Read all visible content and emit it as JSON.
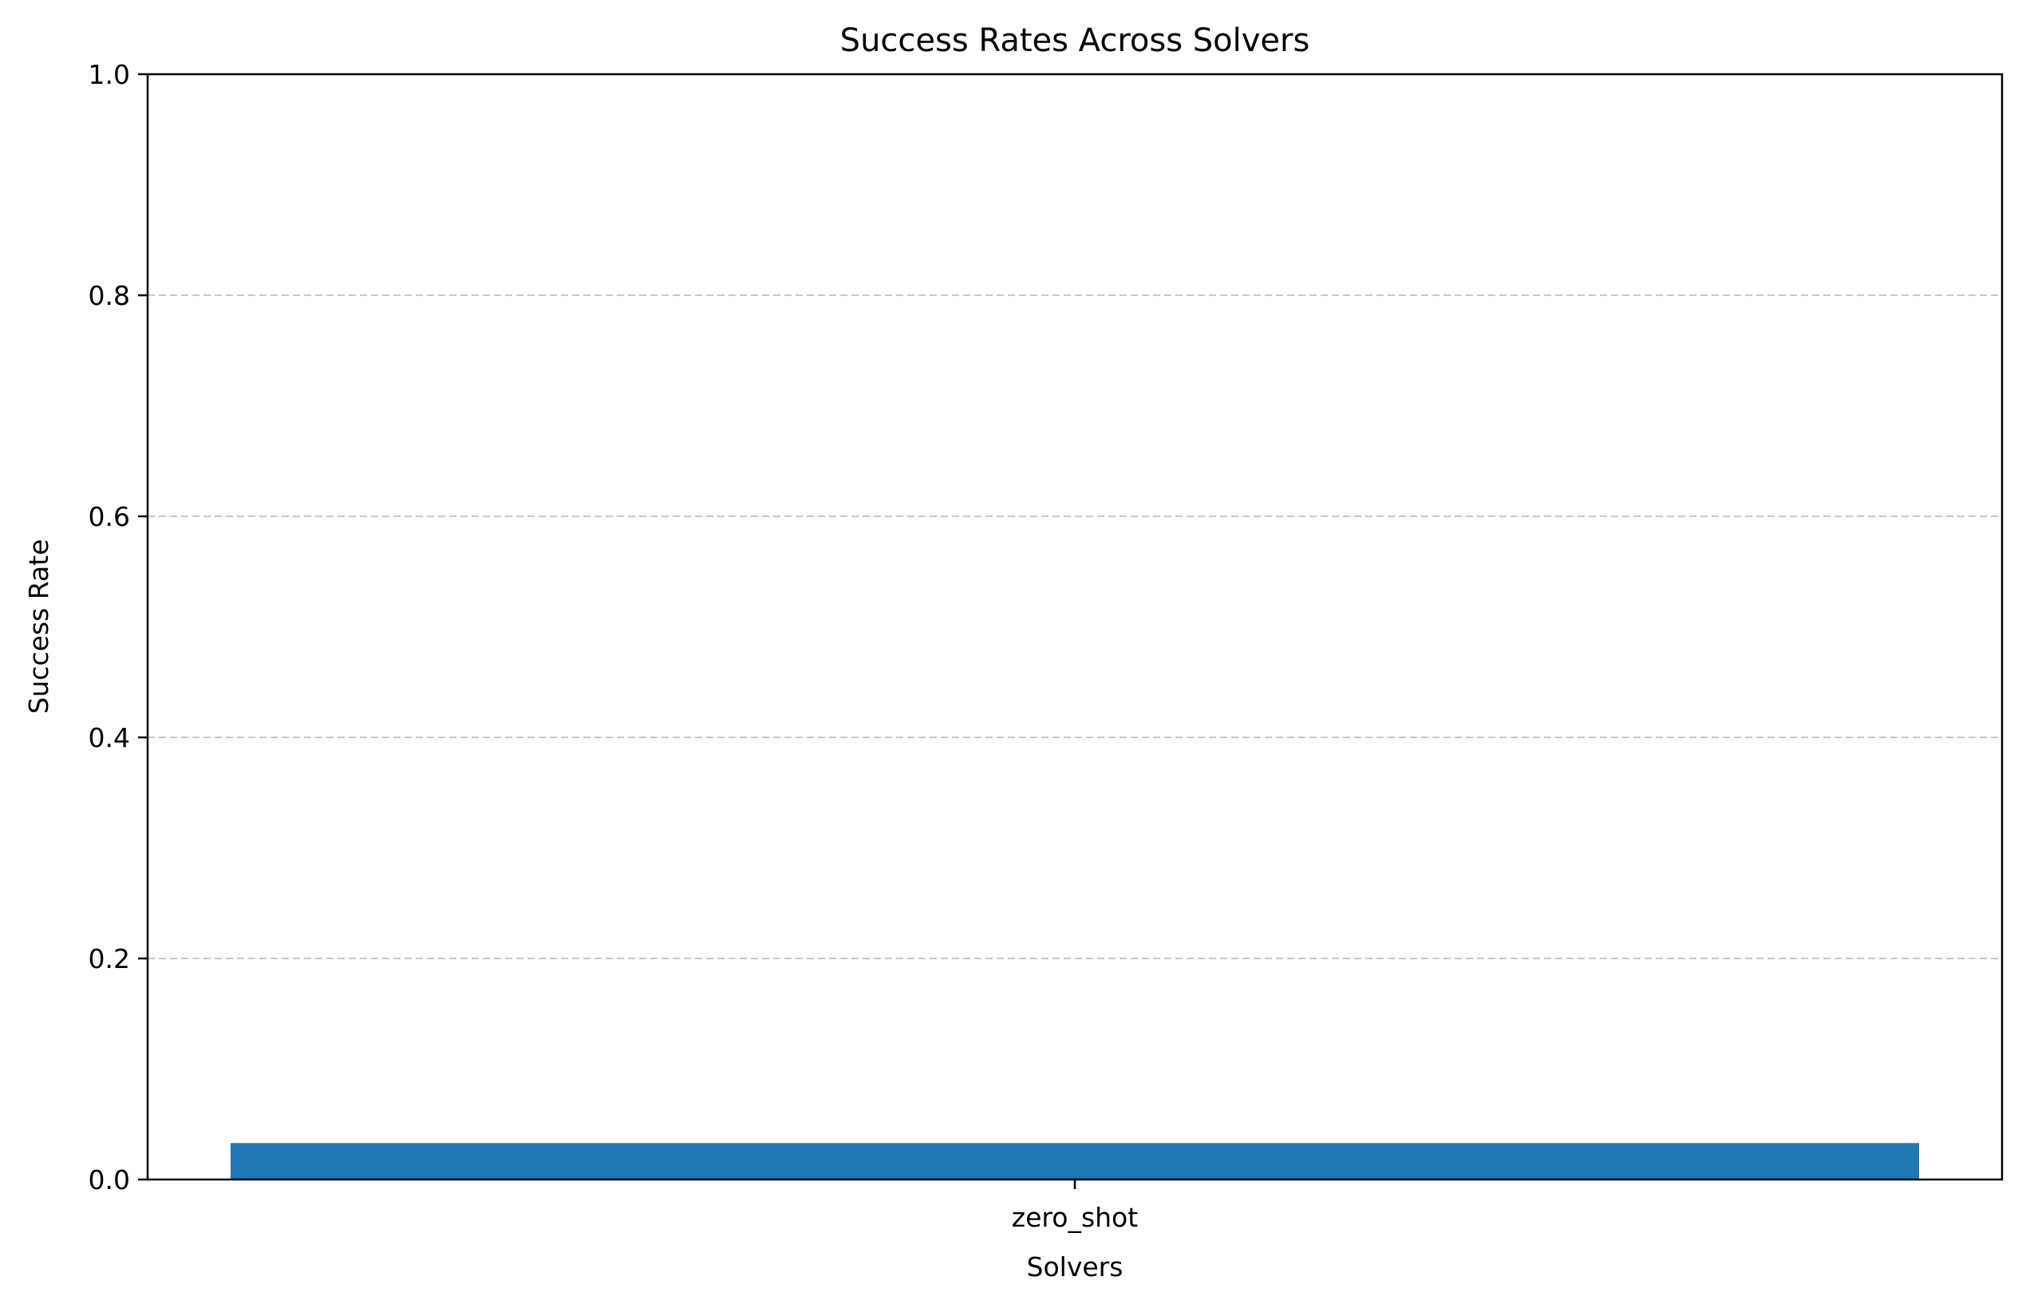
{
  "chart_data": {
    "type": "bar",
    "title": "Success Rates Across Solvers",
    "xlabel": "Solvers",
    "ylabel": "Success Rate",
    "categories": [
      "zero_shot"
    ],
    "values": [
      0.033
    ],
    "ylim": [
      0,
      1.0
    ],
    "yticks": [
      "0.0",
      "0.2",
      "0.4",
      "0.6",
      "0.8",
      "1.0"
    ],
    "grid": "y-dashed",
    "bar_color": "#1f77b4",
    "grid_color": "#c8c8c8"
  }
}
